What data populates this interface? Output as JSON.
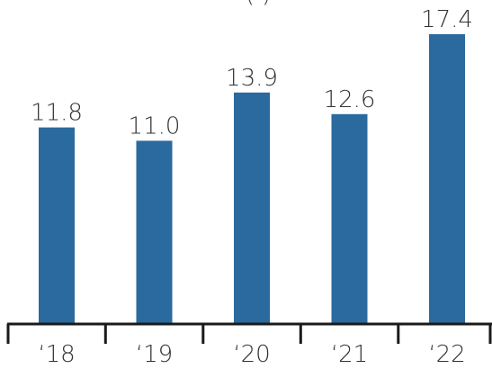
{
  "chart_data": {
    "type": "bar",
    "title_fragment": "(          )",
    "categories": [
      "‘18",
      "‘19",
      "‘20",
      "‘21",
      "‘22"
    ],
    "values": [
      11.8,
      11.0,
      13.9,
      12.6,
      17.4
    ],
    "value_labels": [
      "11.8",
      "11.0",
      "13.9",
      "12.6",
      "17.4"
    ],
    "ylim": [
      0,
      17.4
    ],
    "grid": false,
    "colors": {
      "bar": "#2a6a9e",
      "axis": "#1a1a1a",
      "text": "#333333"
    }
  }
}
